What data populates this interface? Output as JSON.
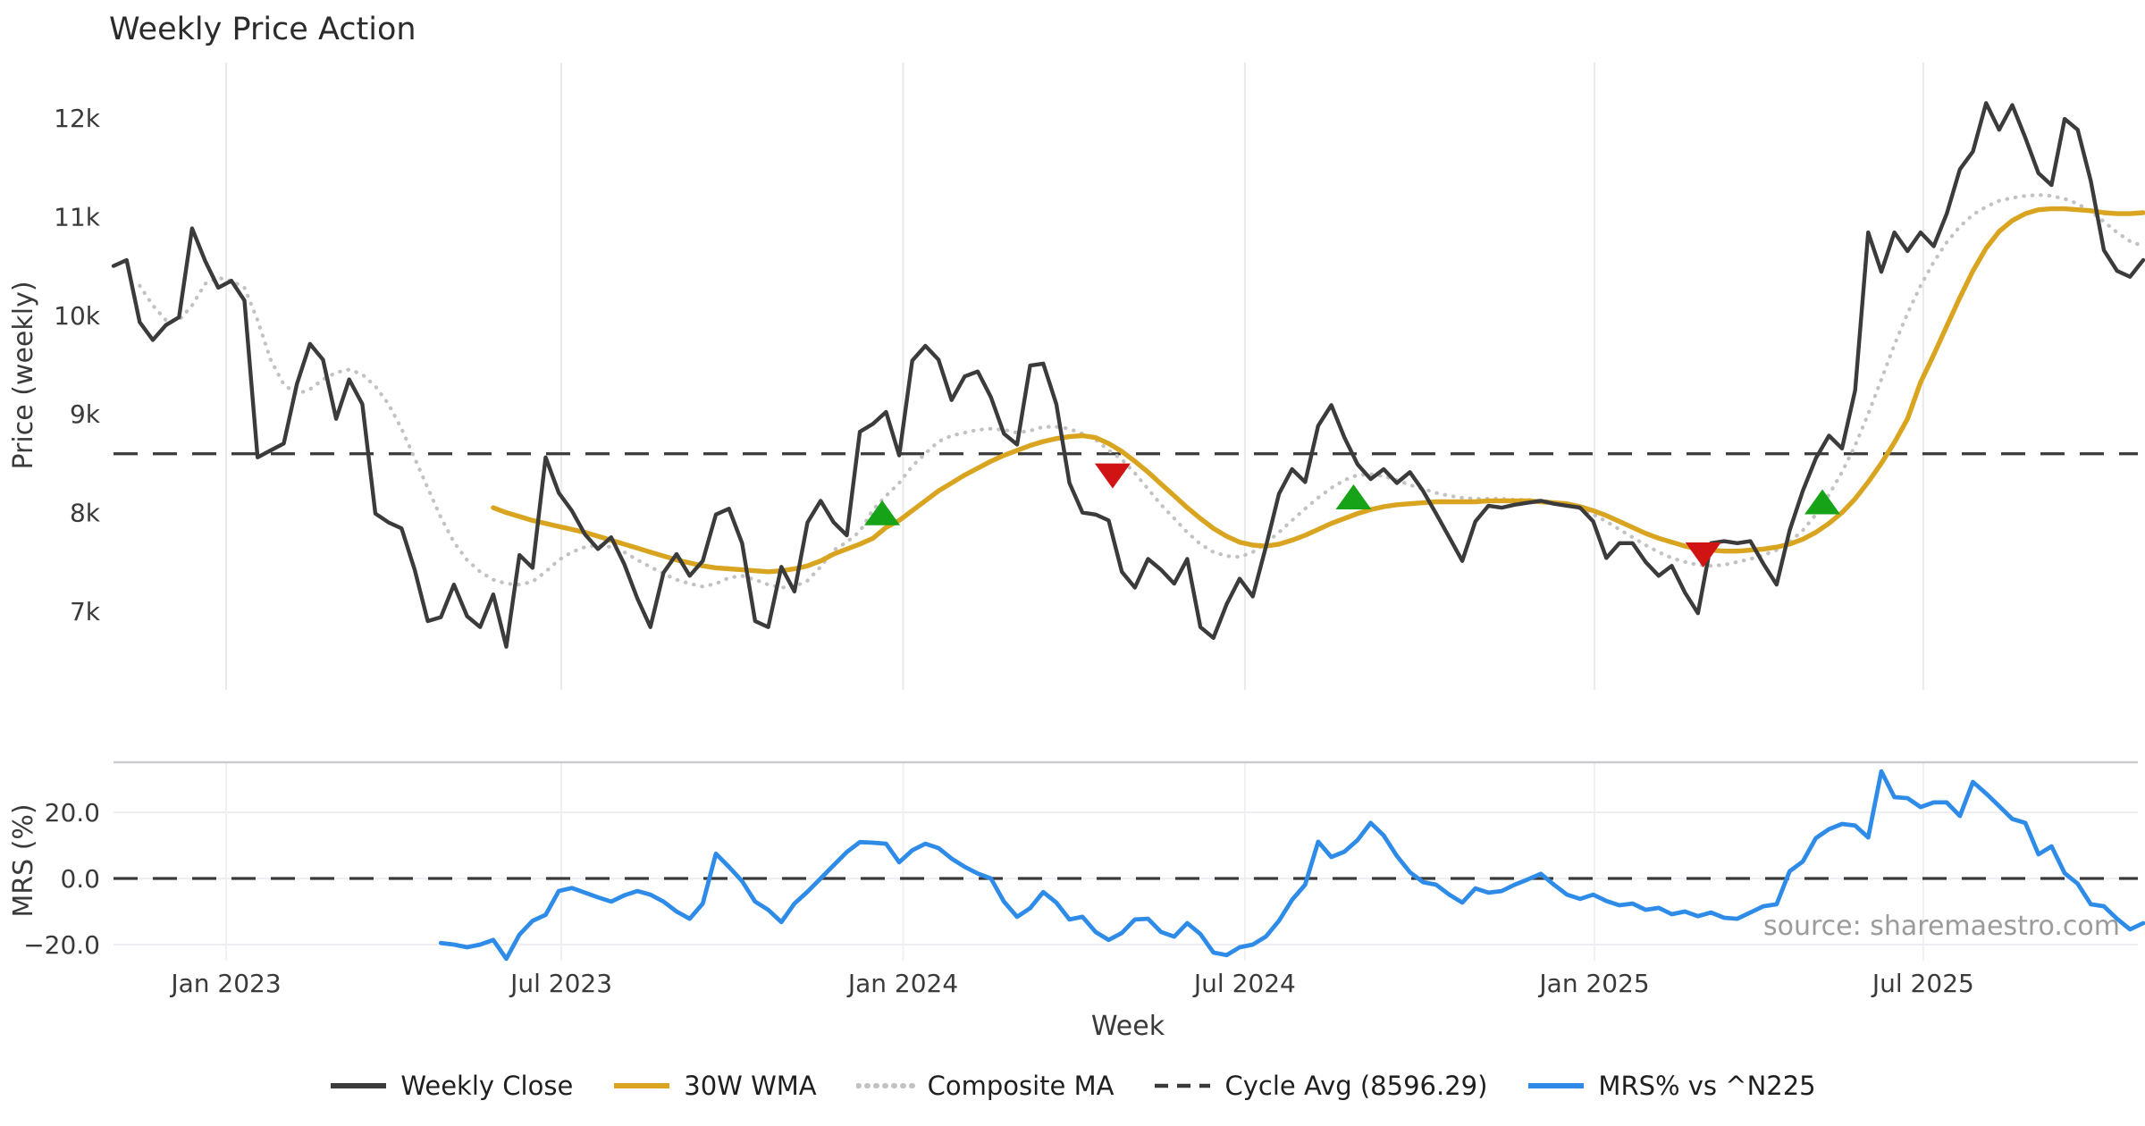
{
  "title": "Weekly Price Action",
  "source": "source: sharemaestro.com",
  "legend": {
    "items": [
      {
        "label": "Weekly Close",
        "color": "#3b3b3b",
        "style": "solid"
      },
      {
        "label": "30W WMA",
        "color": "#d9a521",
        "style": "solid"
      },
      {
        "label": "Composite MA",
        "color": "#c2c2c2",
        "style": "dotted"
      },
      {
        "label": "Cycle Avg (8596.29)",
        "color": "#3a3a3a",
        "style": "dashed"
      },
      {
        "label": "MRS% vs ^N225",
        "color": "#2e8ce8",
        "style": "solid"
      }
    ]
  },
  "chart_data": {
    "type": "line",
    "title": "Weekly Price Action",
    "x": {
      "label": "Week",
      "unit": "weeks",
      "total_weeks": 155,
      "ticks": [
        {
          "week": 8.6,
          "label": "Jan 2023"
        },
        {
          "week": 34.2,
          "label": "Jul 2023"
        },
        {
          "week": 60.3,
          "label": "Jan 2024"
        },
        {
          "week": 86.4,
          "label": "Jul 2024"
        },
        {
          "week": 113.1,
          "label": "Jan 2025"
        },
        {
          "week": 138.2,
          "label": "Jul 2025"
        }
      ]
    },
    "panels": [
      {
        "name": "price",
        "ylabel": "Price (weekly)",
        "ylim": [
          6250,
          12510
        ],
        "yticks": [
          {
            "value": 7000,
            "label": "7k"
          },
          {
            "value": 8000,
            "label": "8k"
          },
          {
            "value": 9000,
            "label": "9k"
          },
          {
            "value": 10000,
            "label": "10k"
          },
          {
            "value": 11000,
            "label": "11k"
          },
          {
            "value": 12000,
            "label": "12k"
          }
        ],
        "cycle_avg": {
          "label": "Cycle Avg (8596.29)",
          "value": 8596.29,
          "color": "#3a3a3a",
          "style": "dashed"
        },
        "series": [
          {
            "name": "Weekly Close",
            "color": "#3b3b3b",
            "style": "solid",
            "start_week": 0,
            "values": [
              10500,
              10560,
              9930,
              9750,
              9900,
              9980,
              10880,
              10550,
              10280,
              10350,
              10150,
              8560,
              8630,
              8700,
              9300,
              9710,
              9550,
              8950,
              9350,
              9100,
              7990,
              7900,
              7840,
              7420,
              6900,
              6940,
              7270,
              6950,
              6840,
              7170,
              6640,
              7570,
              7440,
              8560,
              8200,
              8020,
              7780,
              7630,
              7750,
              7480,
              7130,
              6840,
              7390,
              7580,
              7360,
              7510,
              7980,
              8040,
              7690,
              6900,
              6840,
              7450,
              7200,
              7900,
              8120,
              7900,
              7770,
              8820,
              8900,
              9020,
              8580,
              9540,
              9690,
              9550,
              9140,
              9380,
              9430,
              9170,
              8800,
              8690,
              9490,
              9510,
              9100,
              8300,
              8000,
              7980,
              7920,
              7400,
              7240,
              7530,
              7420,
              7280,
              7530,
              6840,
              6730,
              7070,
              7330,
              7150,
              7650,
              8190,
              8440,
              8310,
              8880,
              9090,
              8760,
              8490,
              8340,
              8440,
              8300,
              8410,
              8220,
              7990,
              7750,
              7510,
              7910,
              8070,
              8050,
              8080,
              8100,
              8120,
              8090,
              8070,
              8050,
              7910,
              7540,
              7690,
              7690,
              7500,
              7360,
              7460,
              7190,
              6980,
              7690,
              7710,
              7690,
              7710,
              7480,
              7270,
              7820,
              8220,
              8550,
              8780,
              8650,
              9240,
              10840,
              10440,
              10840,
              10650,
              10840,
              10700,
              11030,
              11480,
              11660,
              12150,
              11880,
              12130,
              11800,
              11440,
              11320,
              11990,
              11880,
              11360,
              10660,
              10450,
              10390,
              10560
            ]
          },
          {
            "name": "30W WMA",
            "color": "#d9a521",
            "style": "solid",
            "start_week": 29,
            "values": [
              8050,
              8000,
              7960,
              7920,
              7890,
              7860,
              7830,
              7800,
              7760,
              7720,
              7680,
              7640,
              7600,
              7560,
              7520,
              7490,
              7460,
              7440,
              7430,
              7420,
              7410,
              7400,
              7410,
              7430,
              7460,
              7510,
              7580,
              7630,
              7680,
              7740,
              7850,
              7920,
              8020,
              8120,
              8220,
              8300,
              8380,
              8450,
              8520,
              8580,
              8630,
              8680,
              8720,
              8750,
              8770,
              8780,
              8760,
              8700,
              8620,
              8520,
              8410,
              8290,
              8170,
              8050,
              7940,
              7840,
              7760,
              7700,
              7670,
              7660,
              7680,
              7720,
              7770,
              7830,
              7890,
              7940,
              7990,
              8030,
              8060,
              8080,
              8090,
              8100,
              8110,
              8110,
              8110,
              8110,
              8120,
              8120,
              8120,
              8120,
              8110,
              8100,
              8090,
              8060,
              8020,
              7970,
              7910,
              7850,
              7790,
              7740,
              7700,
              7660,
              7630,
              7620,
              7610,
              7610,
              7620,
              7630,
              7650,
              7680,
              7730,
              7800,
              7890,
              8000,
              8140,
              8310,
              8500,
              8710,
              8950,
              9320,
              9600,
              9890,
              10180,
              10450,
              10680,
              10850,
              10960,
              11030,
              11070,
              11080,
              11080,
              11070,
              11060,
              11040,
              11030,
              11030,
              11040
            ]
          },
          {
            "name": "Composite MA",
            "color": "#c2c2c2",
            "style": "dotted",
            "start_week": 2,
            "values": [
              10300,
              10100,
              9950,
              9950,
              10100,
              10320,
              10380,
              10350,
              10280,
              9950,
              9550,
              9300,
              9200,
              9250,
              9350,
              9420,
              9450,
              9400,
              9280,
              9100,
              8850,
              8550,
              8250,
              7950,
              7700,
              7520,
              7400,
              7320,
              7280,
              7270,
              7300,
              7400,
              7520,
              7600,
              7650,
              7670,
              7650,
              7600,
              7520,
              7450,
              7380,
              7320,
              7280,
              7250,
              7280,
              7340,
              7360,
              7320,
              7270,
              7240,
              7250,
              7310,
              7450,
              7620,
              7700,
              7810,
              8030,
              8170,
              8300,
              8470,
              8600,
              8720,
              8780,
              8810,
              8840,
              8850,
              8840,
              8810,
              8830,
              8870,
              8870,
              8850,
              8800,
              8740,
              8630,
              8540,
              8400,
              8240,
              8080,
              7940,
              7800,
              7680,
              7600,
              7560,
              7550,
              7600,
              7690,
              7800,
              7920,
              8040,
              8150,
              8250,
              8330,
              8380,
              8390,
              8370,
              8330,
              8280,
              8240,
              8200,
              8170,
              8150,
              8140,
              8140,
              8140,
              8130,
              8130,
              8120,
              8110,
              8080,
              8040,
              7980,
              7910,
              7830,
              7750,
              7670,
              7600,
              7540,
              7500,
              7470,
              7460,
              7470,
              7500,
              7530,
              7570,
              7620,
              7700,
              7820,
              7980,
              8180,
              8410,
              8680,
              9000,
              9350,
              9700,
              10020,
              10300,
              10540,
              10740,
              10900,
              11020,
              11100,
              11160,
              11190,
              11210,
              11220,
              11210,
              11180,
              11130,
              11050,
              10950,
              10840,
              10750,
              10700
            ]
          }
        ],
        "markers": {
          "buy": {
            "color": "#17a317",
            "shape": "triangle-up",
            "points": [
              {
                "week": 58.7,
                "value": 7990
              },
              {
                "week": 94.7,
                "value": 8150
              },
              {
                "week": 130.5,
                "value": 8100
              }
            ]
          },
          "sell": {
            "color": "#d01414",
            "shape": "triangle-down",
            "points": [
              {
                "week": 76.3,
                "value": 8380
              },
              {
                "week": 121.4,
                "value": 7580
              }
            ]
          }
        }
      },
      {
        "name": "mrs",
        "ylabel": "MRS (%)",
        "ylim": [
          -25,
          35
        ],
        "yticks": [
          {
            "value": 20,
            "label": "20.0"
          },
          {
            "value": 0,
            "label": "0.0"
          },
          {
            "value": -20,
            "label": "−20.0"
          }
        ],
        "zero_line": {
          "value": 0.0,
          "color": "#3a3a3a",
          "style": "dashed"
        },
        "series": [
          {
            "name": "MRS% vs ^N225",
            "color": "#2e8ce8",
            "style": "solid",
            "start_week": 25,
            "values": [
              -19.5,
              -20.0,
              -20.8,
              -20.0,
              -18.6,
              -24.3,
              -17.0,
              -12.8,
              -11.0,
              -3.8,
              -2.9,
              -4.3,
              -5.7,
              -7.0,
              -5.1,
              -3.8,
              -4.9,
              -7.0,
              -10.0,
              -12.2,
              -7.6,
              7.5,
              3.5,
              -0.8,
              -7.0,
              -9.5,
              -13.2,
              -7.6,
              -4.0,
              0.0,
              4.0,
              8.0,
              11.0,
              10.8,
              10.5,
              4.9,
              8.5,
              10.5,
              9.2,
              6.0,
              3.5,
              1.5,
              0.0,
              -7.0,
              -11.6,
              -9.0,
              -4.1,
              -7.3,
              -12.4,
              -11.6,
              -16.2,
              -18.6,
              -16.5,
              -12.4,
              -12.2,
              -16.2,
              -17.6,
              -13.5,
              -16.8,
              -22.4,
              -23.2,
              -20.8,
              -20.0,
              -17.6,
              -12.8,
              -6.5,
              -1.9,
              11.1,
              6.5,
              8.1,
              11.6,
              16.8,
              13.0,
              6.8,
              1.9,
              -1.1,
              -1.9,
              -4.9,
              -7.3,
              -3.0,
              -4.3,
              -3.8,
              -1.9,
              -0.3,
              1.4,
              -1.9,
              -4.9,
              -6.2,
              -4.9,
              -6.8,
              -8.1,
              -7.6,
              -9.5,
              -8.9,
              -10.8,
              -10.0,
              -11.4,
              -10.3,
              -11.9,
              -12.2,
              -10.3,
              -8.4,
              -7.8,
              2.2,
              5.1,
              12.2,
              14.9,
              16.5,
              16.0,
              12.4,
              32.4,
              24.6,
              24.3,
              21.6,
              23.0,
              23.0,
              18.9,
              29.2,
              25.7,
              21.9,
              18.0,
              16.8,
              7.3,
              9.7,
              1.6,
              -1.6,
              -7.8,
              -8.4,
              -12.2,
              -15.4,
              -13.5
            ]
          }
        ]
      }
    ]
  }
}
